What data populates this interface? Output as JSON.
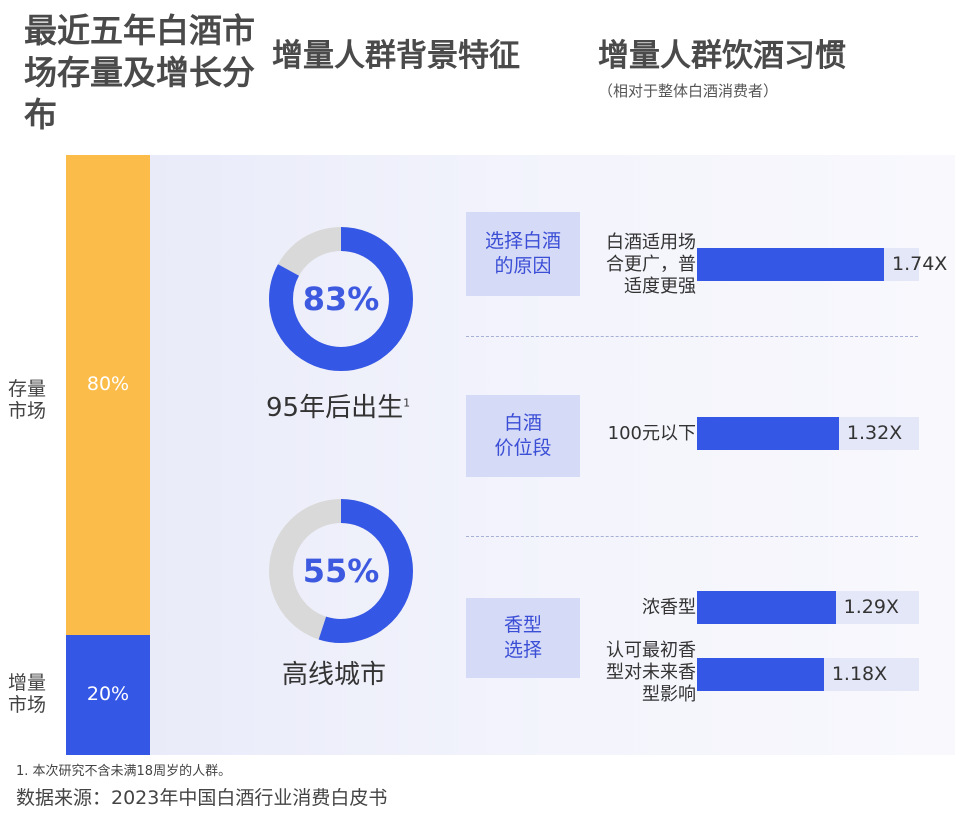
{
  "titles": {
    "left": "最近五年白酒市场存量及增长分布",
    "middle": "增量人群背景特征",
    "right": "增量人群饮酒习惯",
    "right_sub": "（相对于整体白酒消费者）"
  },
  "chart_data": [
    {
      "type": "bar",
      "title": "最近五年白酒市场存量及增长分布",
      "stacked": true,
      "categories": [
        "存量市场",
        "增量市场"
      ],
      "values": [
        80,
        20
      ],
      "value_labels": [
        "80%",
        "20%"
      ],
      "colors": [
        "#fbbc4a",
        "#3557e6"
      ]
    },
    {
      "type": "pie",
      "title": "增量人群背景特征",
      "series": [
        {
          "name": "95年后出生",
          "value": 83,
          "value_label": "83%"
        },
        {
          "name": "高线城市",
          "value": 55,
          "value_label": "55%"
        }
      ],
      "colors": {
        "fill": "#3557e6",
        "track": "#d9d9d9"
      }
    },
    {
      "type": "bar",
      "orientation": "horizontal",
      "title": "增量人群饮酒习惯",
      "subtitle": "（相对于整体白酒消费者）",
      "groups": [
        {
          "group": "选择白酒的原因",
          "items": [
            {
              "label": "白酒适用场合更广，普适度更强",
              "value": 1.74,
              "value_label": "1.74X"
            }
          ]
        },
        {
          "group": "白酒价位段",
          "items": [
            {
              "label": "100元以下",
              "value": 1.32,
              "value_label": "1.32X"
            }
          ]
        },
        {
          "group": "香型选择",
          "items": [
            {
              "label": "浓香型",
              "value": 1.29,
              "value_label": "1.29X"
            },
            {
              "label": "认可最初香型对未来香型影响",
              "value": 1.18,
              "value_label": "1.18X"
            }
          ]
        }
      ],
      "colors": {
        "bar": "#3557e6",
        "track": "#e4e7f7",
        "category_box": "#d5daf6"
      }
    }
  ],
  "stack": {
    "top": {
      "line1": "存量",
      "line2": "市场"
    },
    "bottom": {
      "line1": "增量",
      "line2": "市场"
    }
  },
  "habits": {
    "groups": [
      {
        "line1": "选择白酒",
        "line2": "的原因"
      },
      {
        "line1": "白酒",
        "line2": "价位段"
      },
      {
        "line1": "香型",
        "line2": "选择"
      }
    ],
    "items": [
      {
        "lines": [
          "白酒适用场",
          "合更广，普",
          "适度更强"
        ]
      },
      {
        "lines": [
          "100元以下"
        ]
      },
      {
        "lines": [
          "浓香型"
        ]
      },
      {
        "lines": [
          "认可最初香",
          "型对未来香",
          "型影响"
        ]
      }
    ]
  },
  "footer": {
    "footnote": "1. 本次研究不含未满18周岁的人群。",
    "source": "数据来源：2023年中国白酒行业消费白皮书"
  }
}
